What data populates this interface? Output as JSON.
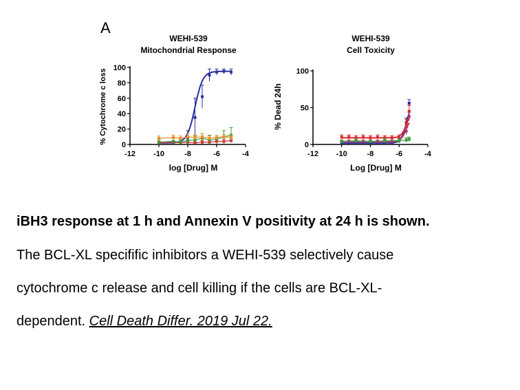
{
  "panel_label": "A",
  "caption": {
    "bold": "iBH3 response at 1 h and Annexin V positivity at 24 h is shown.",
    "line1": "The BCL-XL specifific inhibitors a WEHI-539 selectively cause",
    "line2": "cytochrome c release and cell killing if the cells are BCL-XL-",
    "line3_text": "dependent. ",
    "line3_cite": "Cell Death Differ. 2019 Jul 22."
  },
  "colors": {
    "blue": "#2b2f9c",
    "red": "#e0262b",
    "pink": "#b0336e",
    "green": "#3d9a3d",
    "orange": "#e8922a",
    "axis": "#000000"
  },
  "chart_data": [
    {
      "type": "scatter",
      "title": "WEHI-539",
      "subtitle": "Mitochondrial Response",
      "xlabel": "log [Drug] M",
      "ylabel": "% Cytochrome c loss",
      "xlim": [
        -12,
        -4
      ],
      "ylim": [
        0,
        100
      ],
      "xticks": [
        "-12",
        "-10",
        "-8",
        "-6",
        "-4"
      ],
      "yticks": [
        "0",
        "20",
        "40",
        "60",
        "80",
        "100"
      ],
      "series": [
        {
          "color": "#2b2f9c",
          "fit": "sigmoid",
          "x": [
            -10,
            -9,
            -8.5,
            -8,
            -7.5,
            -7,
            -6.5,
            -6,
            -5.5,
            -5
          ],
          "y": [
            2,
            2,
            3,
            8,
            35,
            62,
            90,
            94,
            95,
            94
          ],
          "err": [
            2,
            2,
            3,
            10,
            25,
            15,
            8,
            4,
            3,
            4
          ]
        },
        {
          "color": "#e0262b",
          "fit": "line",
          "x": [
            -10,
            -9,
            -8.5,
            -8,
            -7.5,
            -7,
            -6.5,
            -6,
            -5.5,
            -5
          ],
          "y": [
            2,
            3,
            2,
            3,
            2,
            3,
            3,
            4,
            4,
            5
          ],
          "err": [
            2,
            2,
            2,
            2,
            2,
            2,
            2,
            3,
            3,
            3
          ]
        },
        {
          "color": "#3d9a3d",
          "fit": "line",
          "x": [
            -10,
            -9,
            -8.5,
            -8,
            -7.5,
            -7,
            -6.5,
            -6,
            -5.5,
            -5
          ],
          "y": [
            3,
            4,
            3,
            5,
            6,
            8,
            6,
            7,
            10,
            12
          ],
          "err": [
            3,
            4,
            3,
            4,
            5,
            6,
            6,
            5,
            8,
            10
          ]
        },
        {
          "color": "#e8922a",
          "fit": "line",
          "x": [
            -10,
            -9,
            -8.5,
            -8,
            -7.5,
            -7,
            -6.5,
            -6,
            -5.5,
            -5
          ],
          "y": [
            8,
            9,
            8,
            10,
            9,
            10,
            8,
            9,
            10,
            9
          ],
          "err": [
            3,
            3,
            3,
            4,
            3,
            4,
            3,
            3,
            3,
            3
          ]
        }
      ]
    },
    {
      "type": "scatter",
      "title": "WEHI-539",
      "subtitle": "Cell Toxicity",
      "xlabel": "Log [Drug] M",
      "ylabel": "% Dead 24h",
      "xlim": [
        -12,
        -4
      ],
      "ylim": [
        0,
        100
      ],
      "xticks": [
        "-12",
        "-10",
        "-8",
        "-6",
        "-4"
      ],
      "yticks": [
        "0",
        "50",
        "100"
      ],
      "series": [
        {
          "color": "#2b2f9c",
          "fit": "sigmoid",
          "x": [
            -10,
            -9.5,
            -9,
            -8.5,
            -8,
            -7.5,
            -7,
            -6.5,
            -6,
            -5.5,
            -5.3
          ],
          "y": [
            2,
            2,
            2,
            2,
            2,
            2,
            2,
            2,
            5,
            30,
            56
          ],
          "err": [
            2,
            2,
            2,
            2,
            2,
            2,
            2,
            2,
            3,
            6,
            5
          ]
        },
        {
          "color": "#e0262b",
          "fit": "sigmoid",
          "x": [
            -10,
            -9.5,
            -9,
            -8.5,
            -8,
            -7.5,
            -7,
            -6.5,
            -6,
            -5.5,
            -5.3
          ],
          "y": [
            10,
            10,
            9,
            10,
            9,
            10,
            9,
            9,
            10,
            28,
            45
          ],
          "err": [
            3,
            3,
            3,
            3,
            3,
            3,
            3,
            3,
            3,
            6,
            8
          ]
        },
        {
          "color": "#b0336e",
          "fit": "sigmoid",
          "x": [
            -10,
            -9.5,
            -9,
            -8.5,
            -8,
            -7.5,
            -7,
            -6.5,
            -6,
            -5.5,
            -5.3
          ],
          "y": [
            4,
            4,
            4,
            4,
            4,
            4,
            4,
            4,
            5,
            18,
            38
          ],
          "err": [
            2,
            2,
            2,
            2,
            2,
            2,
            2,
            2,
            3,
            5,
            6
          ]
        },
        {
          "color": "#3d9a3d",
          "fit": "line",
          "x": [
            -10,
            -9,
            -8,
            -7,
            -6,
            -5.5,
            -5.3
          ],
          "y": [
            4,
            5,
            4,
            5,
            5,
            6,
            7
          ],
          "err": [
            2,
            3,
            2,
            3,
            3,
            3,
            3
          ]
        }
      ]
    }
  ]
}
